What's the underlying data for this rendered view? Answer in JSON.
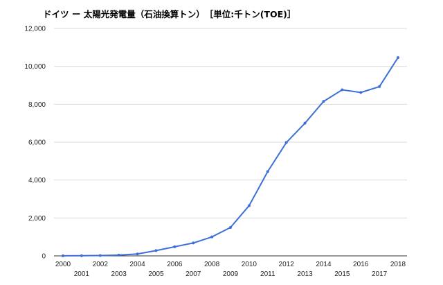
{
  "chart_data": {
    "type": "line",
    "title": "ドイツ ー 太陽光発電量（石油換算トン）　［単位:千トン(TOE)］",
    "xlabel": "",
    "ylabel": "",
    "categories": [
      "2000",
      "2001",
      "2002",
      "2003",
      "2004",
      "2005",
      "2006",
      "2007",
      "2008",
      "2009",
      "2010",
      "2011",
      "2012",
      "2013",
      "2014",
      "2015",
      "2016",
      "2017",
      "2018"
    ],
    "series": [
      {
        "values": [
          5,
          10,
          20,
          40,
          100,
          280,
          480,
          680,
          1000,
          1500,
          2650,
          4450,
          5980,
          7000,
          8150,
          8760,
          8620,
          8930,
          10460
        ]
      }
    ],
    "ylim": [
      0,
      12000
    ],
    "yticks": [
      0,
      2000,
      4000,
      6000,
      8000,
      10000,
      12000
    ],
    "ytick_labels": [
      "0",
      "2,000",
      "4,000",
      "6,000",
      "8,000",
      "10,000",
      "12,000"
    ],
    "grid": true,
    "line_color": "#3d6fd7"
  }
}
